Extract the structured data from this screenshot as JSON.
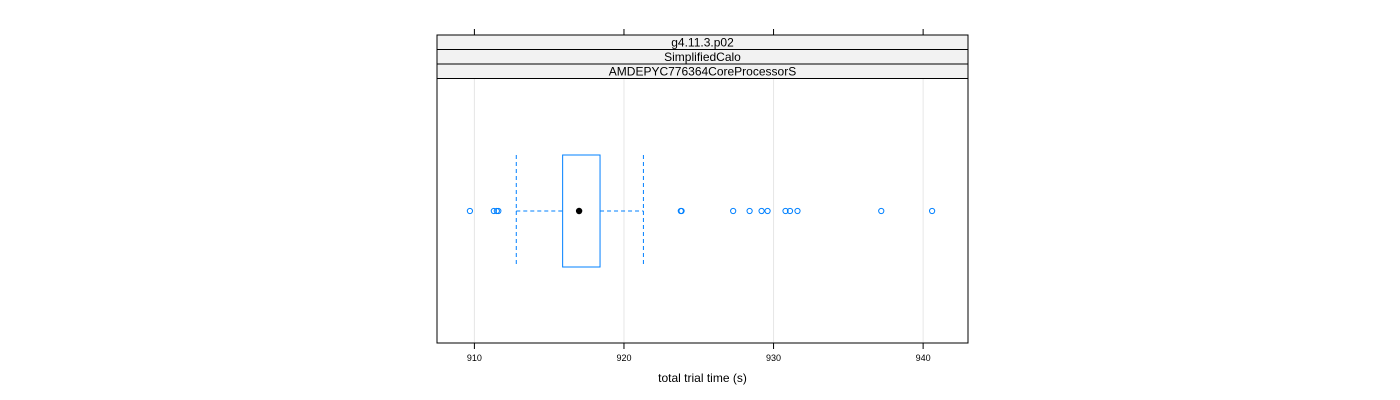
{
  "chart_data": {
    "type": "boxplot",
    "strips": [
      "g4.11.3.p02",
      "SimplifiedCalo",
      "AMDEPYC776364CoreProcessorS"
    ],
    "xlabel": "total trial time (s)",
    "xlim": [
      907.5,
      943.0
    ],
    "ticks": [
      910,
      920,
      930,
      940
    ],
    "tick_labels": [
      "910",
      "920",
      "930",
      "940"
    ],
    "grid": true,
    "box": {
      "whisker_low": 912.8,
      "q1": 915.9,
      "median": 917.0,
      "q3": 918.4,
      "whisker_high": 921.3
    },
    "outliers": [
      909.7,
      911.3,
      911.5,
      911.6,
      923.8,
      923.85,
      927.3,
      928.4,
      929.2,
      929.6,
      930.8,
      931.1,
      931.6,
      937.2,
      940.6
    ],
    "colors": {
      "box": "#0080ff",
      "whisker": "#0080ff",
      "median": "#000000",
      "grid": "#e6e6e6",
      "strip_bg": "#f2f2f2",
      "frame": "#000000"
    }
  }
}
